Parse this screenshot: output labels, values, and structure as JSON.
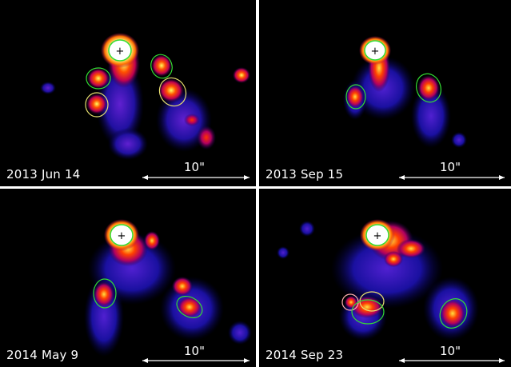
{
  "panels": [
    {
      "date": "2013 Jun 14",
      "scale_label": "10\""
    },
    {
      "date": "2013 Sep 15",
      "scale_label": "10\""
    },
    {
      "date": "2014 May 9",
      "scale_label": "10\""
    },
    {
      "date": "2014 Sep 23",
      "scale_label": "10\""
    }
  ],
  "colors": {
    "background": "#000000",
    "region_green": "#33dd33",
    "region_yellow": "#e8e070",
    "region_pink": "#ffb0b0",
    "core": "#ffffff",
    "divider": "#ffffff"
  },
  "marker_symbol": "+"
}
